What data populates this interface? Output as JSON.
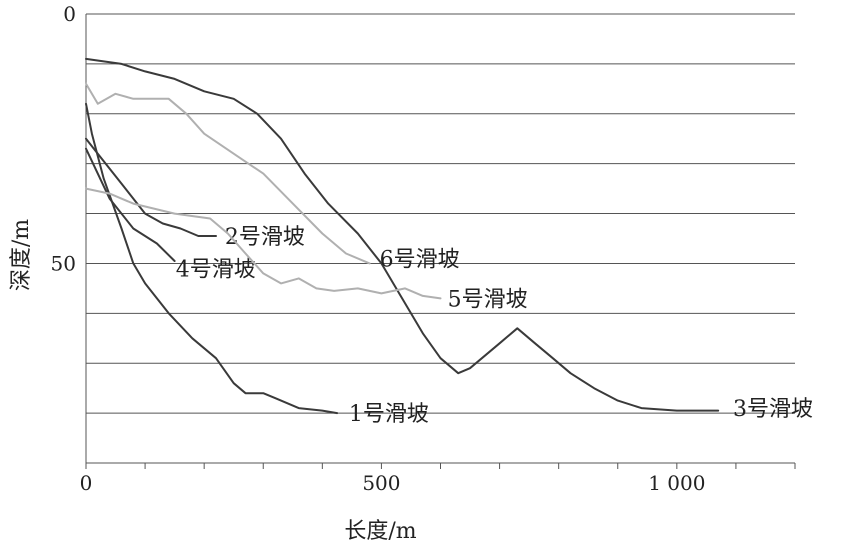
{
  "chart_data": {
    "type": "line",
    "title": "",
    "xlabel": "长度/m",
    "ylabel": "深度/m",
    "xlim": [
      0,
      1200
    ],
    "ylim": [
      0,
      90
    ],
    "y_inverted": true,
    "grid": "horizontal",
    "x_ticks": [
      {
        "value": 0,
        "label": "0"
      },
      {
        "value": 500,
        "label": "500"
      },
      {
        "value": 1000,
        "label": "1 000"
      }
    ],
    "y_ticks": [
      {
        "value": 0,
        "label": "0"
      },
      {
        "value": 50,
        "label": "50"
      }
    ],
    "gridlines_y": [
      0,
      10,
      20,
      30,
      40,
      50,
      60,
      70,
      80,
      90
    ],
    "series": [
      {
        "name": "1号滑坡",
        "color": "#3a3a3a",
        "points": [
          [
            0,
            18
          ],
          [
            10,
            24
          ],
          [
            30,
            33
          ],
          [
            60,
            43
          ],
          [
            80,
            50
          ],
          [
            100,
            54
          ],
          [
            140,
            60
          ],
          [
            180,
            65
          ],
          [
            220,
            69
          ],
          [
            250,
            74
          ],
          [
            270,
            76
          ],
          [
            300,
            76
          ],
          [
            320,
            77
          ],
          [
            360,
            79
          ],
          [
            400,
            79.5
          ],
          [
            425,
            80
          ]
        ],
        "label_anchor": [
          445,
          80
        ]
      },
      {
        "name": "2号滑坡",
        "color": "#3a3a3a",
        "points": [
          [
            0,
            25
          ],
          [
            20,
            28
          ],
          [
            60,
            34
          ],
          [
            100,
            40
          ],
          [
            130,
            42
          ],
          [
            160,
            43
          ],
          [
            190,
            44.5
          ],
          [
            220,
            44.5
          ]
        ],
        "label_anchor": [
          235,
          44.5
        ]
      },
      {
        "name": "3号滑坡",
        "color": "#3a3a3a",
        "points": [
          [
            0,
            9
          ],
          [
            30,
            9.5
          ],
          [
            60,
            10
          ],
          [
            100,
            11.5
          ],
          [
            150,
            13
          ],
          [
            200,
            15.5
          ],
          [
            250,
            17
          ],
          [
            290,
            20
          ],
          [
            330,
            25
          ],
          [
            370,
            32
          ],
          [
            410,
            38
          ],
          [
            460,
            44
          ],
          [
            500,
            50
          ],
          [
            540,
            58
          ],
          [
            570,
            64
          ],
          [
            600,
            69
          ],
          [
            630,
            72
          ],
          [
            650,
            71
          ],
          [
            670,
            69
          ],
          [
            700,
            66
          ],
          [
            730,
            63
          ],
          [
            760,
            66
          ],
          [
            790,
            69
          ],
          [
            820,
            72
          ],
          [
            860,
            75
          ],
          [
            900,
            77.5
          ],
          [
            940,
            79
          ],
          [
            1000,
            79.5
          ],
          [
            1070,
            79.5
          ]
        ],
        "label_anchor": [
          1095,
          79
        ]
      },
      {
        "name": "4号滑坡",
        "color": "#3a3a3a",
        "points": [
          [
            0,
            27
          ],
          [
            40,
            37
          ],
          [
            80,
            43
          ],
          [
            120,
            46
          ],
          [
            150,
            49.5
          ]
        ],
        "label_anchor": [
          152,
          51
        ]
      },
      {
        "name": "5号滑坡",
        "color": "#b0b0b0",
        "points": [
          [
            0,
            35
          ],
          [
            40,
            36
          ],
          [
            80,
            38
          ],
          [
            150,
            40
          ],
          [
            210,
            41
          ],
          [
            240,
            44
          ],
          [
            270,
            48
          ],
          [
            300,
            52
          ],
          [
            330,
            54
          ],
          [
            360,
            53
          ],
          [
            390,
            55
          ],
          [
            420,
            55.5
          ],
          [
            460,
            55
          ],
          [
            500,
            56
          ],
          [
            540,
            55
          ],
          [
            570,
            56.5
          ],
          [
            600,
            57
          ]
        ],
        "label_anchor": [
          612,
          57
        ]
      },
      {
        "name": "6号滑坡",
        "color": "#b0b0b0",
        "points": [
          [
            0,
            14
          ],
          [
            20,
            18
          ],
          [
            50,
            16
          ],
          [
            80,
            17
          ],
          [
            110,
            17
          ],
          [
            140,
            17
          ],
          [
            170,
            20
          ],
          [
            200,
            24
          ],
          [
            250,
            28
          ],
          [
            300,
            32
          ],
          [
            350,
            38
          ],
          [
            400,
            44
          ],
          [
            440,
            48
          ],
          [
            480,
            50
          ]
        ],
        "label_anchor": [
          497,
          49
        ]
      }
    ]
  }
}
